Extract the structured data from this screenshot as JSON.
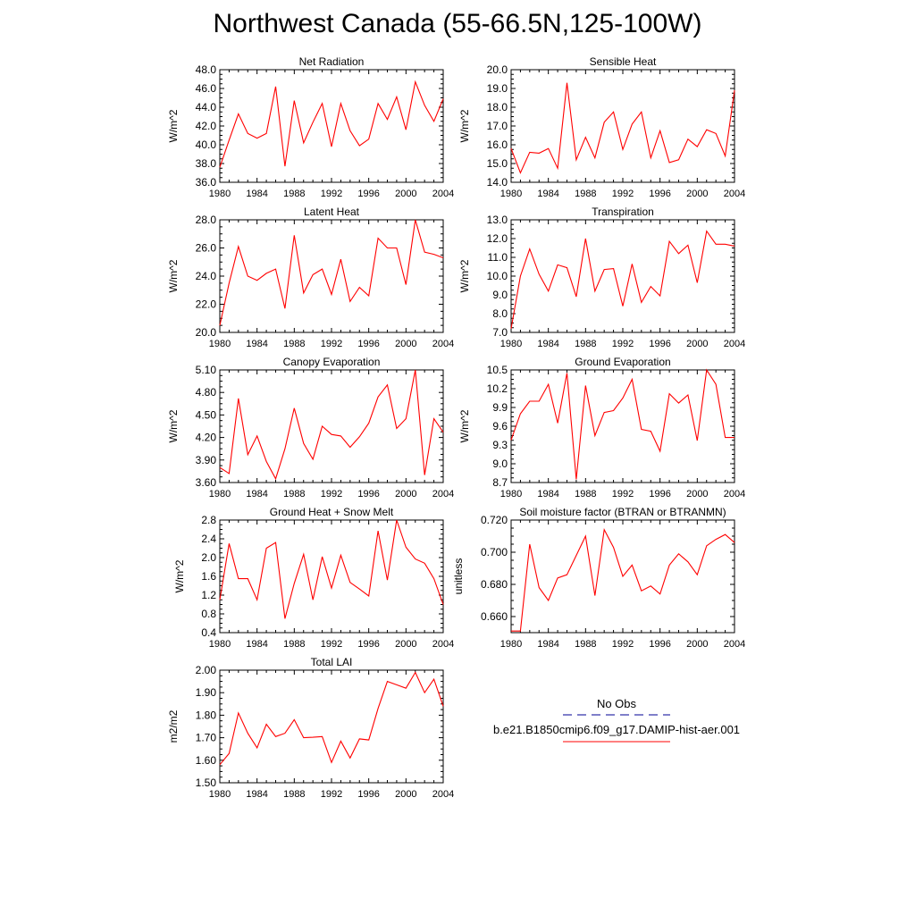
{
  "title": "Northwest Canada (55-66.5N,125-100W)",
  "line_color": "#ff0000",
  "obs_line_color": "#3333aa",
  "legend": {
    "obs_label": "No Obs",
    "model_label": "b.e21.B1850cmip6.f09_g17.DAMIP-hist-aer.001"
  },
  "chart_data": [
    {
      "type": "line",
      "title": "Net Radiation",
      "ylabel": "W/m^2",
      "xlim": [
        1980,
        2004
      ],
      "ylim": [
        36.0,
        48.0
      ],
      "decimals": 1,
      "yticks": [
        36.0,
        38.0,
        40.0,
        42.0,
        44.0,
        46.0,
        48.0
      ],
      "xticks": [
        1980,
        1984,
        1988,
        1992,
        1996,
        2000,
        2004
      ],
      "series": [
        {
          "x": [
            1980,
            1981,
            1982,
            1983,
            1984,
            1985,
            1986,
            1987,
            1988,
            1989,
            1990,
            1991,
            1992,
            1993,
            1994,
            1995,
            1996,
            1997,
            1998,
            1999,
            2000,
            2001,
            2002,
            2003,
            2004
          ],
          "values": [
            37.6,
            40.5,
            43.3,
            41.2,
            40.7,
            41.2,
            46.2,
            37.7,
            44.7,
            40.2,
            42.4,
            44.4,
            39.8,
            44.4,
            41.5,
            39.9,
            40.6,
            44.4,
            42.7,
            45.1,
            41.6,
            46.7,
            44.2,
            42.5,
            44.9
          ]
        }
      ]
    },
    {
      "type": "line",
      "title": "Sensible Heat",
      "ylabel": "W/m^2",
      "xlim": [
        1980,
        2004
      ],
      "ylim": [
        14.0,
        20.0
      ],
      "decimals": 1,
      "yticks": [
        14.0,
        15.0,
        16.0,
        17.0,
        18.0,
        19.0,
        20.0
      ],
      "xticks": [
        1980,
        1984,
        1988,
        1992,
        1996,
        2000,
        2004
      ],
      "series": [
        {
          "x": [
            1980,
            1981,
            1982,
            1983,
            1984,
            1985,
            1986,
            1987,
            1988,
            1989,
            1990,
            1991,
            1992,
            1993,
            1994,
            1995,
            1996,
            1997,
            1998,
            1999,
            2000,
            2001,
            2002,
            2003,
            2004
          ],
          "values": [
            15.8,
            14.5,
            15.6,
            15.55,
            15.8,
            14.75,
            19.3,
            15.2,
            16.4,
            15.3,
            17.2,
            17.75,
            15.75,
            17.1,
            17.75,
            15.3,
            16.75,
            15.05,
            15.2,
            16.3,
            15.9,
            16.8,
            16.6,
            15.4,
            18.9
          ]
        }
      ]
    },
    {
      "type": "line",
      "title": "Latent Heat",
      "ylabel": "W/m^2",
      "xlim": [
        1980,
        2004
      ],
      "ylim": [
        20.0,
        28.0
      ],
      "decimals": 1,
      "yticks": [
        20.0,
        22.0,
        24.0,
        26.0,
        28.0
      ],
      "xticks": [
        1980,
        1984,
        1988,
        1992,
        1996,
        2000,
        2004
      ],
      "series": [
        {
          "x": [
            1980,
            1981,
            1982,
            1983,
            1984,
            1985,
            1986,
            1987,
            1988,
            1989,
            1990,
            1991,
            1992,
            1993,
            1994,
            1995,
            1996,
            1997,
            1998,
            1999,
            2000,
            2001,
            2002,
            2003,
            2004
          ],
          "values": [
            20.5,
            23.5,
            26.1,
            24.0,
            23.7,
            24.2,
            24.5,
            21.7,
            26.9,
            22.8,
            24.1,
            24.5,
            22.7,
            25.2,
            22.2,
            23.2,
            22.6,
            26.7,
            26.0,
            26.0,
            23.4,
            28.0,
            25.7,
            25.55,
            25.3
          ]
        }
      ]
    },
    {
      "type": "line",
      "title": "Transpiration",
      "ylabel": "W/m^2",
      "xlim": [
        1980,
        2004
      ],
      "ylim": [
        7.0,
        13.0
      ],
      "decimals": 1,
      "yticks": [
        7.0,
        8.0,
        9.0,
        10.0,
        11.0,
        12.0,
        13.0
      ],
      "xticks": [
        1980,
        1984,
        1988,
        1992,
        1996,
        2000,
        2004
      ],
      "series": [
        {
          "x": [
            1980,
            1981,
            1982,
            1983,
            1984,
            1985,
            1986,
            1987,
            1988,
            1989,
            1990,
            1991,
            1992,
            1993,
            1994,
            1995,
            1996,
            1997,
            1998,
            1999,
            2000,
            2001,
            2002,
            2003,
            2004
          ],
          "values": [
            7.2,
            10.0,
            11.45,
            10.1,
            9.2,
            10.6,
            10.45,
            8.9,
            12.0,
            9.2,
            10.35,
            10.4,
            8.4,
            10.65,
            8.6,
            9.45,
            8.95,
            11.85,
            11.2,
            11.65,
            9.65,
            12.4,
            11.7,
            11.7,
            11.6
          ]
        }
      ]
    },
    {
      "type": "line",
      "title": "Canopy Evaporation",
      "ylabel": "W/m^2",
      "xlim": [
        1980,
        2004
      ],
      "ylim": [
        3.6,
        5.1
      ],
      "decimals": 2,
      "yticks": [
        3.6,
        3.9,
        4.2,
        4.5,
        4.8,
        5.1
      ],
      "xticks": [
        1980,
        1984,
        1988,
        1992,
        1996,
        2000,
        2004
      ],
      "series": [
        {
          "x": [
            1980,
            1981,
            1982,
            1983,
            1984,
            1985,
            1986,
            1987,
            1988,
            1989,
            1990,
            1991,
            1992,
            1993,
            1994,
            1995,
            1996,
            1997,
            1998,
            1999,
            2000,
            2001,
            2002,
            2003,
            2004
          ],
          "values": [
            3.8,
            3.72,
            4.72,
            3.97,
            4.22,
            3.88,
            3.65,
            4.05,
            4.59,
            4.12,
            3.91,
            4.35,
            4.24,
            4.22,
            4.07,
            4.21,
            4.39,
            4.74,
            4.9,
            4.32,
            4.45,
            5.1,
            3.7,
            4.45,
            4.27
          ]
        }
      ]
    },
    {
      "type": "line",
      "title": "Ground Evaporation",
      "ylabel": "W/m^2",
      "xlim": [
        1980,
        2004
      ],
      "ylim": [
        8.7,
        10.5
      ],
      "decimals": 1,
      "yticks": [
        8.7,
        9.0,
        9.3,
        9.6,
        9.9,
        10.2,
        10.5
      ],
      "xticks": [
        1980,
        1984,
        1988,
        1992,
        1996,
        2000,
        2004
      ],
      "series": [
        {
          "x": [
            1980,
            1981,
            1982,
            1983,
            1984,
            1985,
            1986,
            1987,
            1988,
            1989,
            1990,
            1991,
            1992,
            1993,
            1994,
            1995,
            1996,
            1997,
            1998,
            1999,
            2000,
            2001,
            2002,
            2003,
            2004
          ],
          "values": [
            9.38,
            9.8,
            10.0,
            10.0,
            10.27,
            9.65,
            10.45,
            8.75,
            10.25,
            9.45,
            9.82,
            9.85,
            10.05,
            10.35,
            9.55,
            9.52,
            9.2,
            10.12,
            9.97,
            10.1,
            9.37,
            10.5,
            10.27,
            9.42,
            9.42
          ]
        }
      ]
    },
    {
      "type": "line",
      "title": "Ground Heat + Snow Melt",
      "ylabel": "W/m^2",
      "xlim": [
        1980,
        2004
      ],
      "ylim": [
        0.4,
        2.8
      ],
      "decimals": 1,
      "yticks": [
        0.4,
        0.8,
        1.2,
        1.6,
        2.0,
        2.4,
        2.8
      ],
      "xticks": [
        1980,
        1984,
        1988,
        1992,
        1996,
        2000,
        2004
      ],
      "series": [
        {
          "x": [
            1980,
            1981,
            1982,
            1983,
            1984,
            1985,
            1986,
            1987,
            1988,
            1989,
            1990,
            1991,
            1992,
            1993,
            1994,
            1995,
            1996,
            1997,
            1998,
            1999,
            2000,
            2001,
            2002,
            2003,
            2004
          ],
          "values": [
            1.1,
            2.3,
            1.55,
            1.55,
            1.1,
            2.2,
            2.32,
            0.7,
            1.45,
            2.07,
            1.1,
            2.02,
            1.35,
            2.05,
            1.47,
            1.33,
            1.18,
            2.57,
            1.52,
            2.8,
            2.22,
            1.97,
            1.88,
            1.55,
            1.0
          ]
        }
      ]
    },
    {
      "type": "line",
      "title": "Soil moisture factor (BTRAN or BTRANMN)",
      "ylabel": "unitless",
      "xlim": [
        1980,
        2004
      ],
      "ylim": [
        0.65,
        0.72
      ],
      "decimals": 3,
      "yticks": [
        0.66,
        0.68,
        0.7,
        0.72
      ],
      "xticks": [
        1980,
        1984,
        1988,
        1992,
        1996,
        2000,
        2004
      ],
      "series": [
        {
          "x": [
            1980,
            1981,
            1982,
            1983,
            1984,
            1985,
            1986,
            1987,
            1988,
            1989,
            1990,
            1991,
            1992,
            1993,
            1994,
            1995,
            1996,
            1997,
            1998,
            1999,
            2000,
            2001,
            2002,
            2003,
            2004
          ],
          "values": [
            0.651,
            0.651,
            0.705,
            0.678,
            0.67,
            0.684,
            0.686,
            0.698,
            0.71,
            0.673,
            0.714,
            0.703,
            0.685,
            0.692,
            0.676,
            0.679,
            0.674,
            0.692,
            0.699,
            0.694,
            0.686,
            0.704,
            0.708,
            0.711,
            0.706
          ]
        }
      ]
    },
    {
      "type": "line",
      "title": "Total LAI",
      "ylabel": "m2/m2",
      "xlim": [
        1980,
        2004
      ],
      "ylim": [
        1.5,
        2.0
      ],
      "decimals": 2,
      "yticks": [
        1.5,
        1.6,
        1.7,
        1.8,
        1.9,
        2.0
      ],
      "xticks": [
        1980,
        1984,
        1988,
        1992,
        1996,
        2000,
        2004
      ],
      "series": [
        {
          "x": [
            1980,
            1981,
            1982,
            1983,
            1984,
            1985,
            1986,
            1987,
            1988,
            1989,
            1990,
            1991,
            1992,
            1993,
            1994,
            1995,
            1996,
            1997,
            1998,
            1999,
            2000,
            2001,
            2002,
            2003,
            2004
          ],
          "values": [
            1.58,
            1.63,
            1.81,
            1.72,
            1.655,
            1.76,
            1.705,
            1.72,
            1.78,
            1.7,
            1.702,
            1.705,
            1.59,
            1.685,
            1.61,
            1.695,
            1.69,
            1.83,
            1.95,
            1.935,
            1.92,
            1.99,
            1.9,
            1.96,
            1.84
          ]
        }
      ]
    }
  ]
}
